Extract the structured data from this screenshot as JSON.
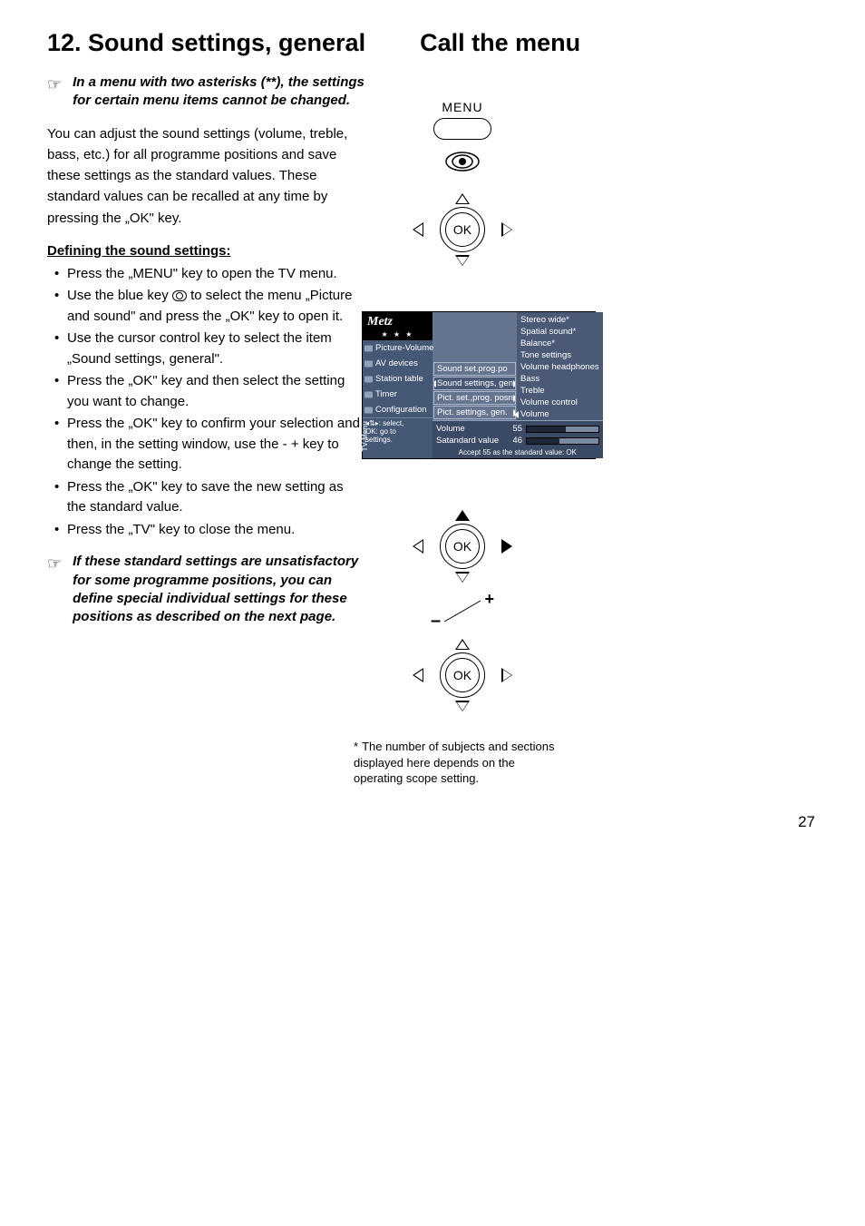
{
  "header": {
    "section_title": "12. Sound settings, general",
    "call_menu": "Call the menu"
  },
  "note1": "In a menu with two asterisks (**), the settings for certain menu items cannot be changed.",
  "intro": "You can adjust the sound settings (volume, treble, bass, etc.) for all programme positions and save these settings as the standard values. These standard values can be recalled at any time by pressing the „OK\" key.",
  "subheading": "Defining the sound settings:",
  "steps": [
    "Press the „MENU\" key to open the TV menu.",
    "Use the blue key __BLUEKEY__ to select the menu „Picture and sound\" and press the „OK\" key to open it.",
    "Use the cursor control key to select the item „Sound settings, general\".",
    "Press the „OK\" key and then select the setting you want to change.",
    "Press the „OK\" key to confirm your selection and then, in the setting window, use the - + key to change the setting.",
    "Press the „OK\" key to save the new setting as the standard value.",
    "Press the „TV\" key to close the menu."
  ],
  "note2": "If these standard settings are unsatisfactory for some programme positions, you can define special individual settings for these positions as described on the next page.",
  "remote": {
    "menu_label": "MENU",
    "ok_label": "OK"
  },
  "menu": {
    "logo": "Metz",
    "stars": "★  ★  ★",
    "sidebar": [
      "Picture-Volume",
      "AV devices",
      "Station table",
      "Timer",
      "Configuration"
    ],
    "sidebar_hint": "◂⇅▸: select,\nOK: go to\nsettings.",
    "tv_menu_tag": "TV-Menu",
    "middle": [
      {
        "label": "Sound set.prog.po"
      },
      {
        "label": "Sound settings, gen.",
        "selected": true,
        "arrow": "lr"
      },
      {
        "label": "Pict. set.,prog. posn.*",
        "arrow": "r"
      },
      {
        "label": "Pict. settings, gen.",
        "arrow": "r"
      }
    ],
    "right": [
      "Stereo wide*",
      "Spatial sound*",
      "Balance*",
      "Tone settings",
      "Volume headphones",
      "Bass",
      "Treble",
      "Volume control",
      "Volume"
    ],
    "volume_panel": {
      "row1_label": "Volume",
      "row1_value": "55",
      "row1_fill_pct": 55,
      "row2_label": "Satandard value",
      "row2_value": "46",
      "row2_fill_pct": 46,
      "accept": "Accept 55 as the standard value: OK"
    },
    "colors": {
      "sidebar_bg": "#455977",
      "main_bg": "#66758f",
      "rightlist_bg": "#4a5a76",
      "vol_bg": "#3a4a64"
    }
  },
  "footnote": "The number of subjects and sections displayed here depends on the operating scope setting.",
  "page_number": "27"
}
